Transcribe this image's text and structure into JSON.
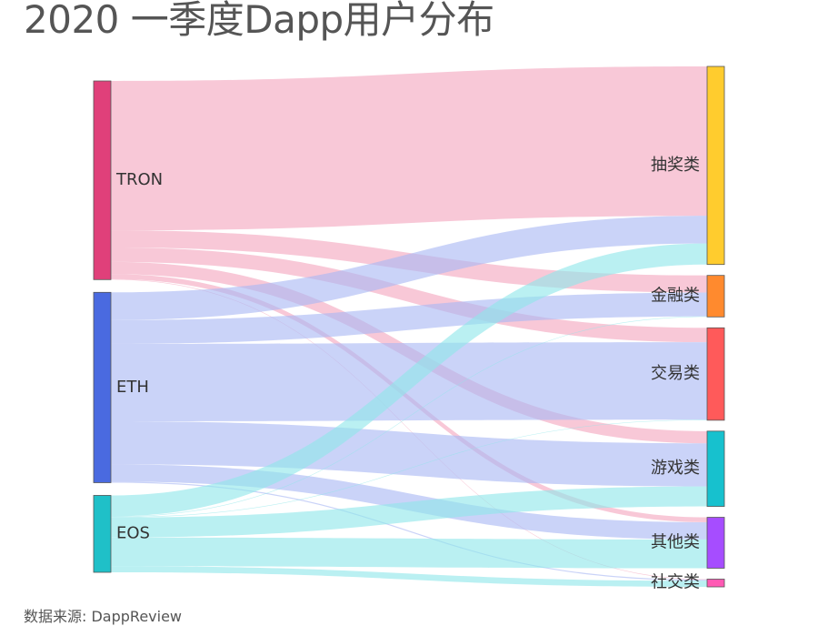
{
  "chart_data": {
    "type": "sankey",
    "title": "2020 一季度Dapp用户分布",
    "source_note": "数据来源: DappReview",
    "units": "percent of total users (estimated)",
    "sources": [
      {
        "name": "TRON",
        "color": "#e0407a",
        "flow_color": "#f4a7bf"
      },
      {
        "name": "ETH",
        "color": "#4a6ae0",
        "flow_color": "#a9b8f4"
      },
      {
        "name": "EOS",
        "color": "#1fc0c8",
        "flow_color": "#8fe6ea"
      }
    ],
    "targets": [
      {
        "name": "抽奖类",
        "color": "#ffcc2e"
      },
      {
        "name": "金融类",
        "color": "#ff8a2e"
      },
      {
        "name": "交易类",
        "color": "#ff5a5a"
      },
      {
        "name": "游戏类",
        "color": "#17c1ce"
      },
      {
        "name": "其他类",
        "color": "#a64dff"
      },
      {
        "name": "社交类",
        "color": "#ff5ab4"
      }
    ],
    "links": [
      {
        "source": "TRON",
        "target": "抽奖类",
        "value": 27.0
      },
      {
        "source": "TRON",
        "target": "金融类",
        "value": 3.1
      },
      {
        "source": "TRON",
        "target": "交易类",
        "value": 2.6
      },
      {
        "source": "TRON",
        "target": "游戏类",
        "value": 2.2
      },
      {
        "source": "TRON",
        "target": "其他类",
        "value": 0.9
      },
      {
        "source": "TRON",
        "target": "社交类",
        "value": 0.1
      },
      {
        "source": "ETH",
        "target": "抽奖类",
        "value": 5.0
      },
      {
        "source": "ETH",
        "target": "金融类",
        "value": 4.3
      },
      {
        "source": "ETH",
        "target": "交易类",
        "value": 14.0
      },
      {
        "source": "ETH",
        "target": "游戏类",
        "value": 7.8
      },
      {
        "source": "ETH",
        "target": "其他类",
        "value": 3.1
      },
      {
        "source": "ETH",
        "target": "社交类",
        "value": 0.2
      },
      {
        "source": "EOS",
        "target": "抽奖类",
        "value": 3.8
      },
      {
        "source": "EOS",
        "target": "金融类",
        "value": 0.1
      },
      {
        "source": "EOS",
        "target": "交易类",
        "value": 0.1
      },
      {
        "source": "EOS",
        "target": "游戏类",
        "value": 3.6
      },
      {
        "source": "EOS",
        "target": "其他类",
        "value": 5.2
      },
      {
        "source": "EOS",
        "target": "社交类",
        "value": 1.1
      }
    ]
  }
}
